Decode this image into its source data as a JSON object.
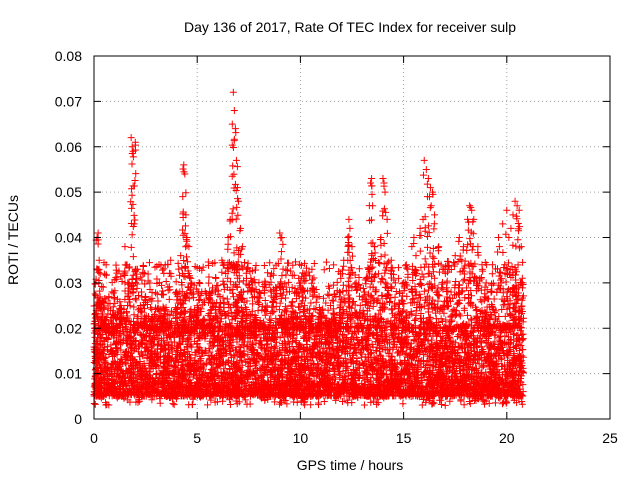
{
  "chart_data": {
    "type": "scatter",
    "title": "Day 136 of 2017, Rate Of TEC Index for receiver sulp",
    "xlabel": "GPS time / hours",
    "ylabel": "ROTI / TECUs",
    "xlim": [
      0,
      25
    ],
    "ylim": [
      0,
      0.08
    ],
    "x_ticks": [
      0,
      5,
      10,
      15,
      20,
      25
    ],
    "y_ticks": [
      0,
      0.01,
      0.02,
      0.03,
      0.04,
      0.05,
      0.06,
      0.07,
      0.08
    ],
    "x_tick_labels": [
      "0",
      "5",
      "10",
      "15",
      "20",
      "25"
    ],
    "y_tick_labels": [
      "0",
      "0.01",
      "0.02",
      "0.03",
      "0.04",
      "0.05",
      "0.06",
      "0.07",
      "0.08"
    ],
    "grid": true,
    "marker": "+",
    "color": "#ff0000",
    "x_data_range": [
      0,
      20.8
    ],
    "typical_band": [
      0.005,
      0.02
    ],
    "series": [
      {
        "values": [
          [
            0.05,
            0.018
          ],
          [
            0.1,
            0.025
          ],
          [
            0.15,
            0.04
          ],
          [
            0.2,
            0.041
          ],
          [
            0.25,
            0.035
          ],
          [
            0.3,
            0.032
          ],
          [
            0.4,
            0.026
          ],
          [
            0.5,
            0.022
          ],
          [
            0.7,
            0.02
          ],
          [
            0.9,
            0.023
          ],
          [
            1.1,
            0.019
          ],
          [
            1.3,
            0.025
          ],
          [
            1.5,
            0.038
          ],
          [
            1.6,
            0.034
          ],
          [
            1.7,
            0.03
          ],
          [
            1.8,
            0.062
          ],
          [
            1.85,
            0.06
          ],
          [
            1.9,
            0.059
          ],
          [
            2.0,
            0.061
          ],
          [
            1.95,
            0.043
          ],
          [
            2.1,
            0.033
          ],
          [
            2.3,
            0.028
          ],
          [
            2.5,
            0.027
          ],
          [
            2.8,
            0.022
          ],
          [
            3.1,
            0.026
          ],
          [
            3.4,
            0.024
          ],
          [
            3.7,
            0.021
          ],
          [
            4.0,
            0.028
          ],
          [
            4.2,
            0.036
          ],
          [
            4.3,
            0.049
          ],
          [
            4.35,
            0.056
          ],
          [
            4.4,
            0.054
          ],
          [
            4.45,
            0.045
          ],
          [
            4.5,
            0.04
          ],
          [
            4.6,
            0.038
          ],
          [
            4.7,
            0.03
          ],
          [
            5.0,
            0.025
          ],
          [
            5.3,
            0.022
          ],
          [
            5.6,
            0.028
          ],
          [
            5.9,
            0.031
          ],
          [
            6.1,
            0.027
          ],
          [
            6.3,
            0.034
          ],
          [
            6.5,
            0.04
          ],
          [
            6.6,
            0.044
          ],
          [
            6.7,
            0.065
          ],
          [
            6.75,
            0.072
          ],
          [
            6.8,
            0.068
          ],
          [
            6.85,
            0.064
          ],
          [
            6.9,
            0.057
          ],
          [
            6.95,
            0.051
          ],
          [
            7.0,
            0.048
          ],
          [
            7.1,
            0.042
          ],
          [
            7.2,
            0.038
          ],
          [
            7.4,
            0.033
          ],
          [
            7.6,
            0.031
          ],
          [
            7.8,
            0.03
          ],
          [
            8.0,
            0.028
          ],
          [
            8.3,
            0.03
          ],
          [
            8.6,
            0.032
          ],
          [
            8.8,
            0.029
          ],
          [
            9.0,
            0.041
          ],
          [
            9.1,
            0.04
          ],
          [
            9.3,
            0.033
          ],
          [
            9.6,
            0.029
          ],
          [
            9.8,
            0.028
          ],
          [
            10.0,
            0.03
          ],
          [
            10.2,
            0.025
          ],
          [
            10.5,
            0.022
          ],
          [
            10.8,
            0.02
          ],
          [
            11.0,
            0.024
          ],
          [
            11.3,
            0.021
          ],
          [
            11.6,
            0.026
          ],
          [
            11.9,
            0.028
          ],
          [
            12.1,
            0.035
          ],
          [
            12.3,
            0.04
          ],
          [
            12.35,
            0.044
          ],
          [
            12.4,
            0.042
          ],
          [
            12.5,
            0.038
          ],
          [
            12.7,
            0.03
          ],
          [
            12.9,
            0.025
          ],
          [
            13.1,
            0.028
          ],
          [
            13.3,
            0.033
          ],
          [
            13.4,
            0.052
          ],
          [
            13.45,
            0.053
          ],
          [
            13.5,
            0.047
          ],
          [
            13.6,
            0.038
          ],
          [
            13.9,
            0.04
          ],
          [
            14.0,
            0.053
          ],
          [
            14.05,
            0.052
          ],
          [
            14.1,
            0.05
          ],
          [
            14.2,
            0.044
          ],
          [
            14.4,
            0.035
          ],
          [
            14.6,
            0.03
          ],
          [
            14.8,
            0.028
          ],
          [
            15.0,
            0.03
          ],
          [
            15.2,
            0.033
          ],
          [
            15.4,
            0.038
          ],
          [
            15.5,
            0.04
          ],
          [
            15.6,
            0.036
          ],
          [
            15.8,
            0.042
          ],
          [
            16.0,
            0.057
          ],
          [
            16.1,
            0.055
          ],
          [
            16.2,
            0.053
          ],
          [
            16.3,
            0.051
          ],
          [
            16.4,
            0.05
          ],
          [
            16.5,
            0.045
          ],
          [
            16.7,
            0.038
          ],
          [
            16.9,
            0.033
          ],
          [
            17.1,
            0.03
          ],
          [
            17.3,
            0.028
          ],
          [
            17.5,
            0.036
          ],
          [
            17.7,
            0.04
          ],
          [
            17.9,
            0.038
          ],
          [
            18.1,
            0.044
          ],
          [
            18.2,
            0.047
          ],
          [
            18.3,
            0.046
          ],
          [
            18.4,
            0.044
          ],
          [
            18.6,
            0.038
          ],
          [
            18.8,
            0.034
          ],
          [
            19.0,
            0.03
          ],
          [
            19.3,
            0.032
          ],
          [
            19.6,
            0.04
          ],
          [
            19.8,
            0.043
          ],
          [
            20.0,
            0.046
          ],
          [
            20.1,
            0.04
          ],
          [
            20.2,
            0.042
          ],
          [
            20.3,
            0.045
          ],
          [
            20.4,
            0.048
          ],
          [
            20.5,
            0.047
          ],
          [
            20.6,
            0.046
          ],
          [
            20.7,
            0.038
          ],
          [
            20.75,
            0.03
          ]
        ]
      }
    ]
  }
}
